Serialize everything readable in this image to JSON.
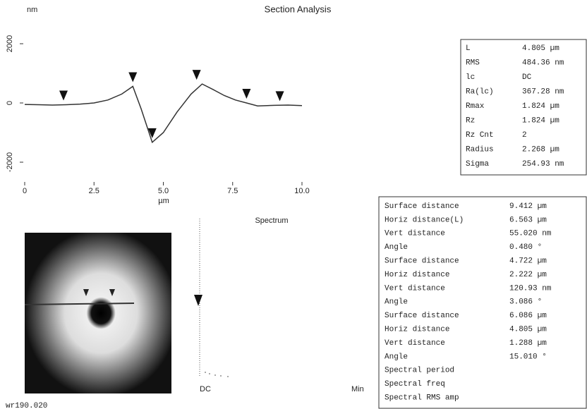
{
  "chart_data": {
    "type": "line",
    "title": "Section Analysis",
    "ylabel": "nm",
    "xlabel": "µm",
    "x": [
      0,
      0.5,
      1,
      1.5,
      2,
      2.5,
      3,
      3.5,
      3.9,
      4.2,
      4.6,
      5.0,
      5.5,
      6.0,
      6.4,
      6.8,
      7.2,
      7.6,
      8.0,
      8.4,
      9.0,
      9.5,
      10
    ],
    "values": [
      -50,
      -60,
      -70,
      -60,
      -40,
      0,
      100,
      300,
      560,
      -200,
      -1330,
      -1000,
      -300,
      300,
      640,
      450,
      250,
      100,
      0,
      -100,
      -80,
      -70,
      -90
    ],
    "color": "#333333",
    "markers": {
      "x": [
        1.4,
        3.9,
        4.6,
        6.2,
        8.0,
        9.2
      ],
      "y": [
        -60,
        560,
        -1330,
        640,
        0,
        -80
      ]
    },
    "xlim": [
      0,
      10
    ],
    "xticks": [
      0,
      2.5,
      {
        "value": 5,
        "label": "5.0"
      },
      7.5,
      {
        "value": 10,
        "label": "10.0"
      }
    ],
    "ylim": [
      -2500,
      2500
    ],
    "yticks": [
      2000,
      0,
      -2000
    ]
  },
  "spectrum": {
    "title": "Spectrum",
    "left_label": "DC",
    "right_label": "Min"
  },
  "footer": "wr190.020",
  "params": [
    [
      "L",
      "4.805 µm"
    ],
    [
      "RMS",
      "484.36 nm"
    ],
    [
      "lc",
      "DC"
    ],
    [
      "Ra(lc)",
      "367.28 nm"
    ],
    [
      "Rmax",
      "1.824 µm"
    ],
    [
      "Rz",
      "1.824 µm"
    ],
    [
      "Rz Cnt",
      "2"
    ],
    [
      "Radius",
      "2.268 µm"
    ],
    [
      "Sigma",
      "254.93 nm"
    ]
  ],
  "measurements": [
    [
      "Surface distance",
      "9.412 µm"
    ],
    [
      "Horiz distance(L)",
      "6.563 µm"
    ],
    [
      "Vert distance",
      "55.020 nm"
    ],
    [
      "Angle",
      "0.480 °"
    ],
    [
      "Surface distance",
      "4.722 µm"
    ],
    [
      "Horiz distance",
      "2.222 µm"
    ],
    [
      "Vert distance",
      "120.93 nm"
    ],
    [
      "Angle",
      "3.086 °"
    ],
    [
      "Surface distance",
      "6.086 µm"
    ],
    [
      "Horiz distance",
      "4.805 µm"
    ],
    [
      "Vert distance",
      "1.288 µm"
    ],
    [
      "Angle",
      "15.010 °"
    ],
    [
      "Spectral period"
    ],
    [
      "Spectral freq"
    ],
    [
      "Spectral RMS amp"
    ]
  ]
}
